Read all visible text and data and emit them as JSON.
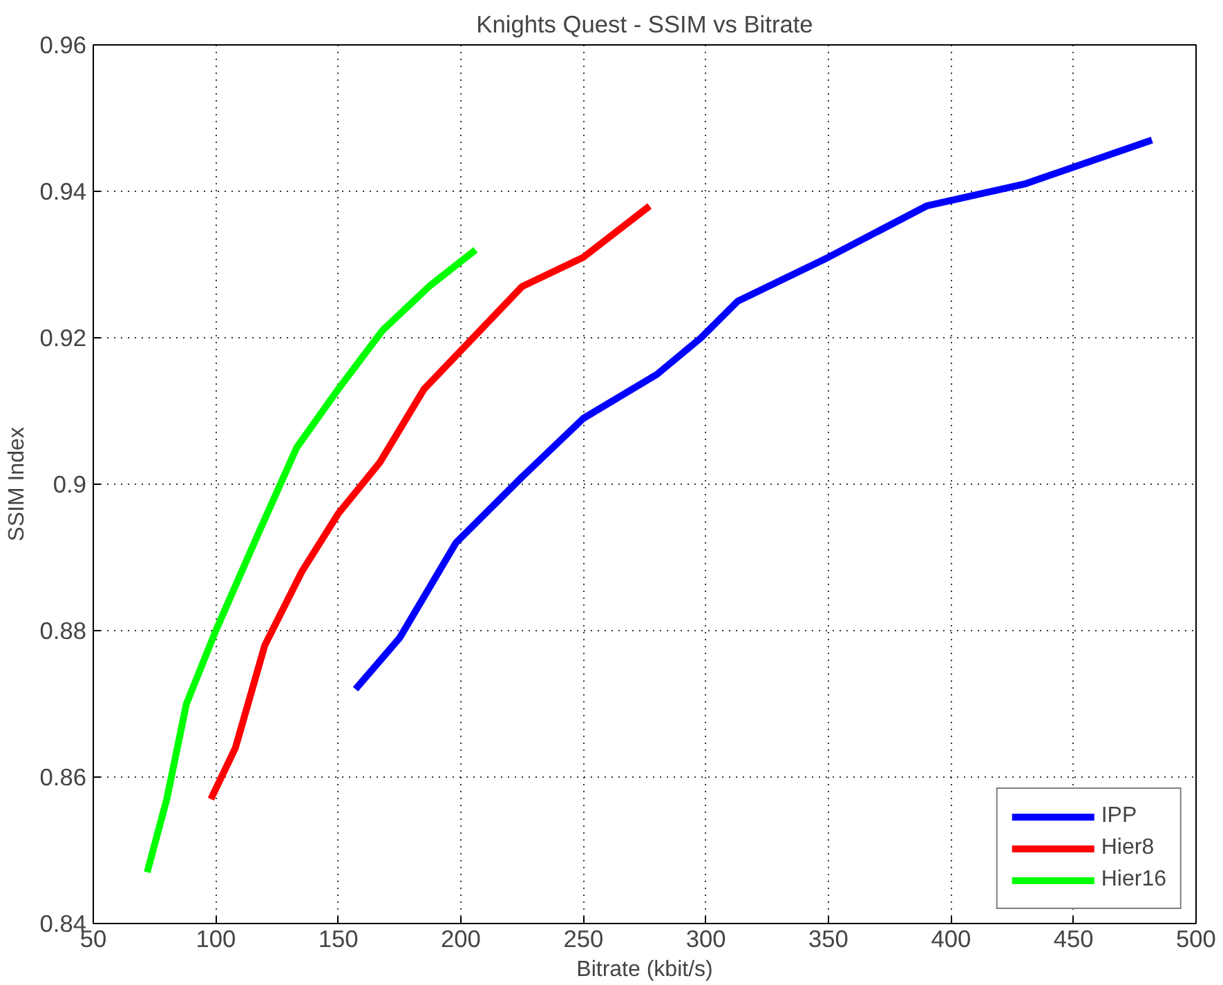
{
  "chart_data": {
    "type": "line",
    "title": "Knights Quest - SSIM vs Bitrate",
    "xlabel": "Bitrate (kbit/s)",
    "ylabel": "SSIM Index",
    "xlim": [
      50,
      500
    ],
    "xticks": [
      50,
      100,
      150,
      200,
      250,
      300,
      350,
      400,
      450,
      500
    ],
    "ylim": [
      0.84,
      0.96
    ],
    "yticks": [
      0.84,
      0.86,
      0.88,
      0.9,
      0.92,
      0.94,
      0.96
    ],
    "grid": true,
    "legend": "bottom right",
    "line_style": "solid",
    "series": [
      {
        "name": "IPP",
        "color": "#0000ff",
        "x": [
          157,
          175,
          198,
          225,
          250,
          280,
          298,
          313,
          350,
          390,
          430,
          482
        ],
        "values": [
          0.872,
          0.879,
          0.892,
          0.901,
          0.909,
          0.915,
          0.92,
          0.925,
          0.931,
          0.938,
          0.941,
          0.947
        ]
      },
      {
        "name": "Hier8",
        "color": "#ff0000",
        "x": [
          98,
          108,
          120,
          135,
          150,
          167,
          185,
          205,
          225,
          250,
          277
        ],
        "values": [
          0.857,
          0.864,
          0.878,
          0.888,
          0.896,
          0.903,
          0.913,
          0.92,
          0.927,
          0.931,
          0.938
        ]
      },
      {
        "name": "Hier16",
        "color": "#00ff00",
        "x": [
          72,
          80,
          88,
          100,
          117,
          133,
          150,
          168,
          187,
          206
        ],
        "values": [
          0.847,
          0.857,
          0.87,
          0.88,
          0.893,
          0.905,
          0.913,
          0.921,
          0.927,
          0.932
        ]
      }
    ]
  }
}
